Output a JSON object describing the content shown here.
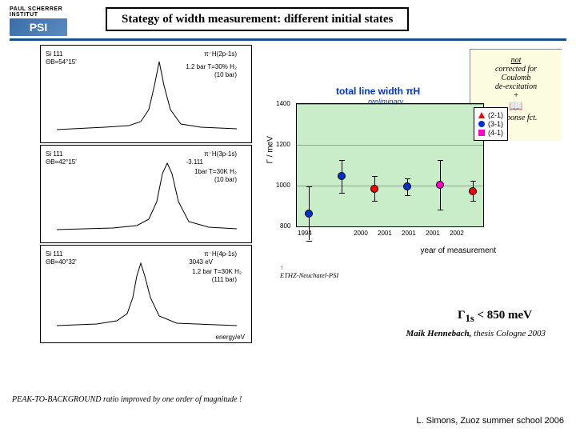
{
  "logo": {
    "institute": "PAUL SCHERRER INSTITUT",
    "acronym": "PSI"
  },
  "title": "Stategy of width measurement: different initial states",
  "note": {
    "line1": "not",
    "line2": "corrected for",
    "line3": "Coulomb",
    "line4": "de-excitation",
    "line5": "+",
    "line6": "Response fct."
  },
  "chart": {
    "title": "total line width πH",
    "subtitle": "preliminary",
    "ylabel": "Γ / meV",
    "xlabel": "year of measurement",
    "background": "#c8edc8",
    "xlim": [
      1994,
      2002
    ],
    "ylim": [
      800,
      1400
    ],
    "ytick_step": 200,
    "xticks": [
      1994,
      2000,
      2001,
      2001,
      2001,
      2002
    ],
    "legend": [
      {
        "label": "(2-1)",
        "color": "#ff0000",
        "shape": "triangle"
      },
      {
        "label": "(3-1)",
        "color": "#0033cc",
        "shape": "circle"
      },
      {
        "label": "(4-1)",
        "color": "#ff00cc",
        "shape": "square"
      }
    ],
    "points": [
      {
        "x": 1994,
        "y": 870,
        "err": 130,
        "color": "#0033cc"
      },
      {
        "x": 2000,
        "y": 1050,
        "err": 80,
        "color": "#0033cc"
      },
      {
        "x": 2001,
        "y": 990,
        "err": 60,
        "color": "#ff0000"
      },
      {
        "x": 2001.4,
        "y": 1000,
        "err": 40,
        "color": "#0033cc"
      },
      {
        "x": 2001.8,
        "y": 1010,
        "err": 120,
        "color": "#ff00cc"
      },
      {
        "x": 2002,
        "y": 980,
        "err": 50,
        "color": "#ff0000"
      }
    ]
  },
  "spectra": [
    {
      "transition": "π⁻H(2p-1s)",
      "crystal": "Si 111",
      "bragg": "ΘB=54°15'",
      "condition": "1.2 bar T=30% H₂",
      "secondary": "(10 bar)",
      "xmin": 2440,
      "xmax": 2442,
      "peak_x": 2436.1
    },
    {
      "transition": "π⁻H(3p-1s)",
      "crystal": "Si 111",
      "bragg": "ΘB=42°15'",
      "energy": "-3.111",
      "condition": "1bar T=30K H₂",
      "secondary": "(10 bar)",
      "xmin": 2880,
      "xmax": 2890,
      "peak_x": 2885.9
    },
    {
      "transition": "π⁻H(4p-1s)",
      "crystal": "Si 111",
      "bragg": "ΘB=40°32'",
      "energy": "3043 eV",
      "condition": "1.2 bar T=30K H₂",
      "secondary": "(111 bar)",
      "xmin": 3036,
      "xmax": 3050,
      "peak_x": 3042,
      "xlabel": "energy/eV"
    }
  ],
  "arrow_note": "ETHZ-Neuchatel-PSI",
  "result": {
    "symbol": "Γ",
    "subscript": "1s",
    "text": " < 850 meV"
  },
  "citation": {
    "author": "Maik Hennebach,",
    "rest": " thesis Cologne 2003"
  },
  "footer_note": "PEAK-TO-BACKGROUND ratio improved by one order of magnitude !",
  "footer_credit": "L. Simons,  Zuoz summer school 2006"
}
